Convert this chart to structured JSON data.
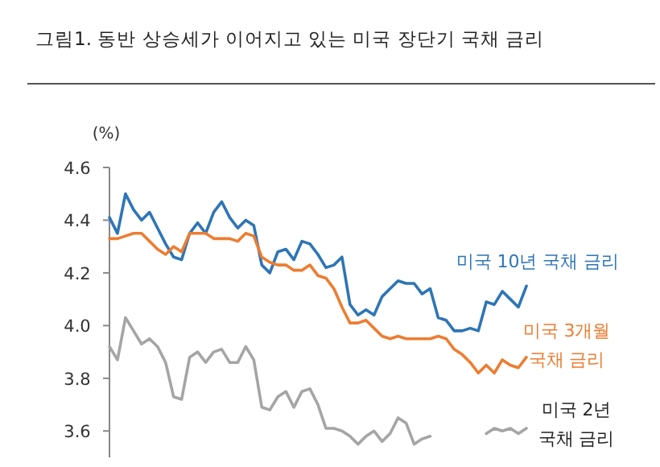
{
  "chart_data": {
    "type": "line",
    "title": "그림1.  동반 상승세가 이어지고 있는 미국 장단기 국채 금리",
    "ylabel": "(%)",
    "categories": [
      null,
      null,
      null,
      null,
      null,
      null,
      null,
      null,
      null,
      null,
      null,
      null,
      null,
      null,
      null,
      null,
      null,
      null,
      null,
      null,
      null,
      null,
      null,
      null,
      null,
      null,
      null,
      null,
      null,
      null,
      null,
      null,
      null,
      null,
      null,
      null,
      null,
      null,
      null,
      null,
      null,
      null,
      null,
      null,
      null,
      null,
      null,
      null,
      null,
      null,
      null,
      null,
      null
    ],
    "ylim": [
      3.5,
      4.6
    ],
    "yticks": [
      {
        "value": 3.6,
        "label": "3.6"
      },
      {
        "value": 3.8,
        "label": "3.8"
      },
      {
        "value": 4.0,
        "label": "4.0"
      },
      {
        "value": 4.2,
        "label": "4.2"
      },
      {
        "value": 4.4,
        "label": "4.4"
      },
      {
        "value": 4.6,
        "label": "4.6"
      }
    ],
    "tick_labels": "y",
    "series": [
      {
        "name": "미국 10년 국채 금리",
        "color": "#2e75b6",
        "values": [
          4.41,
          4.35,
          4.5,
          4.44,
          4.4,
          4.43,
          4.37,
          4.31,
          4.26,
          4.25,
          4.35,
          4.39,
          4.35,
          4.43,
          4.47,
          4.41,
          4.37,
          4.4,
          4.38,
          4.23,
          4.2,
          4.28,
          4.29,
          4.25,
          4.32,
          4.31,
          4.27,
          4.22,
          4.23,
          4.26,
          4.08,
          4.04,
          4.06,
          4.04,
          4.11,
          4.14,
          4.17,
          4.16,
          4.16,
          4.12,
          4.14,
          4.03,
          4.02,
          3.98,
          3.98,
          3.99,
          3.98,
          4.09,
          4.08,
          4.13,
          4.1,
          4.07,
          4.15
        ]
      },
      {
        "name": "미국 3개월 국채 금리",
        "color": "#ed7d31",
        "values": [
          4.33,
          4.33,
          4.34,
          4.35,
          4.35,
          4.32,
          4.29,
          4.27,
          4.3,
          4.28,
          4.35,
          4.35,
          4.35,
          4.33,
          4.33,
          4.33,
          4.32,
          4.35,
          4.34,
          4.26,
          4.24,
          4.23,
          4.23,
          4.21,
          4.21,
          4.23,
          4.19,
          4.18,
          4.14,
          4.07,
          4.01,
          4.01,
          4.02,
          3.99,
          3.96,
          3.95,
          3.96,
          3.95,
          3.95,
          3.95,
          3.95,
          3.96,
          3.95,
          3.91,
          3.89,
          3.86,
          3.82,
          3.85,
          3.82,
          3.87,
          3.85,
          3.84,
          3.88
        ]
      },
      {
        "name": "미국 2년 국채 금리",
        "color": "#a5a5a5",
        "values": [
          3.92,
          3.87,
          4.03,
          3.98,
          3.93,
          3.95,
          3.92,
          3.86,
          3.73,
          3.72,
          3.88,
          3.9,
          3.86,
          3.9,
          3.91,
          3.86,
          3.86,
          3.92,
          3.87,
          3.69,
          3.68,
          3.73,
          3.75,
          3.69,
          3.75,
          3.76,
          3.7,
          3.61,
          3.61,
          3.6,
          3.58,
          3.55,
          3.58,
          3.6,
          3.56,
          3.59,
          3.65,
          3.63,
          3.55,
          3.57,
          3.58,
          null,
          null,
          null,
          null,
          null,
          null,
          3.59,
          3.61,
          3.6,
          3.61,
          3.59,
          3.61
        ]
      }
    ]
  }
}
